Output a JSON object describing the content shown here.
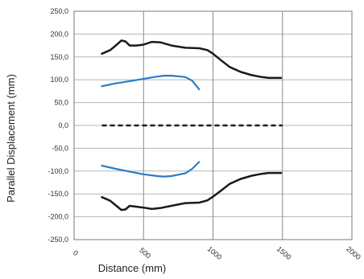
{
  "chart_data": {
    "type": "line",
    "title": "",
    "xlabel": "Distance (mm)",
    "ylabel": "Parallel Displacement (mm)",
    "xlim": [
      0,
      2000
    ],
    "ylim": [
      -250,
      250
    ],
    "x_ticks": [
      {
        "value": 0,
        "label": "0"
      },
      {
        "value": 500,
        "label": "500"
      },
      {
        "value": 1000,
        "label": "1000"
      },
      {
        "value": 1500,
        "label": "1500"
      },
      {
        "value": 2000,
        "label": "2000"
      }
    ],
    "y_ticks": [
      {
        "value": 250,
        "label": "250,0"
      },
      {
        "value": 200,
        "label": "200,0"
      },
      {
        "value": 150,
        "label": "150,0"
      },
      {
        "value": 100,
        "label": "100,0"
      },
      {
        "value": 50,
        "label": "50,0"
      },
      {
        "value": 0,
        "label": "0,0"
      },
      {
        "value": -50,
        "label": "-50,0"
      },
      {
        "value": -100,
        "label": "-100,0"
      },
      {
        "value": -150,
        "label": "-150,0"
      },
      {
        "value": -200,
        "label": "-200,0"
      },
      {
        "value": -250,
        "label": "-250,0"
      }
    ],
    "grid": true,
    "legend": "none",
    "series": [
      {
        "color": "#1a1a1a",
        "style": "solid",
        "width": 2.5,
        "points": [
          [
            200,
            157
          ],
          [
            260,
            165
          ],
          [
            300,
            175
          ],
          [
            340,
            186
          ],
          [
            370,
            184
          ],
          [
            400,
            175
          ],
          [
            450,
            175
          ],
          [
            500,
            177
          ],
          [
            560,
            183
          ],
          [
            620,
            182
          ],
          [
            700,
            175
          ],
          [
            800,
            170
          ],
          [
            900,
            169
          ],
          [
            960,
            165
          ],
          [
            1000,
            157
          ],
          [
            1060,
            142
          ],
          [
            1120,
            128
          ],
          [
            1200,
            117
          ],
          [
            1280,
            110
          ],
          [
            1350,
            106
          ],
          [
            1400,
            104
          ],
          [
            1450,
            104
          ],
          [
            1490,
            104
          ]
        ]
      },
      {
        "color": "#1a1a1a",
        "style": "solid",
        "width": 2.5,
        "points": [
          [
            200,
            -157
          ],
          [
            260,
            -165
          ],
          [
            300,
            -175
          ],
          [
            340,
            -185
          ],
          [
            370,
            -184
          ],
          [
            400,
            -176
          ],
          [
            450,
            -178
          ],
          [
            500,
            -180
          ],
          [
            560,
            -183
          ],
          [
            620,
            -181
          ],
          [
            700,
            -176
          ],
          [
            800,
            -170
          ],
          [
            900,
            -169
          ],
          [
            960,
            -164
          ],
          [
            1000,
            -156
          ],
          [
            1060,
            -142
          ],
          [
            1120,
            -128
          ],
          [
            1200,
            -117
          ],
          [
            1280,
            -110
          ],
          [
            1350,
            -106
          ],
          [
            1400,
            -104
          ],
          [
            1450,
            -104
          ],
          [
            1490,
            -104
          ]
        ]
      },
      {
        "color": "#2a7bc8",
        "style": "solid",
        "width": 2.2,
        "points": [
          [
            200,
            86
          ],
          [
            300,
            92
          ],
          [
            400,
            97
          ],
          [
            500,
            102
          ],
          [
            600,
            107
          ],
          [
            650,
            109
          ],
          [
            700,
            109
          ],
          [
            800,
            106
          ],
          [
            850,
            98
          ],
          [
            900,
            79
          ]
        ]
      },
      {
        "color": "#2a7bc8",
        "style": "solid",
        "width": 2.2,
        "points": [
          [
            200,
            -88
          ],
          [
            300,
            -95
          ],
          [
            400,
            -101
          ],
          [
            500,
            -107
          ],
          [
            600,
            -111
          ],
          [
            650,
            -112
          ],
          [
            700,
            -111
          ],
          [
            800,
            -105
          ],
          [
            850,
            -95
          ],
          [
            900,
            -80
          ]
        ]
      },
      {
        "color": "#1a1a1a",
        "style": "dashed",
        "width": 2.5,
        "points": [
          [
            200,
            0
          ],
          [
            1500,
            0
          ]
        ]
      }
    ]
  }
}
